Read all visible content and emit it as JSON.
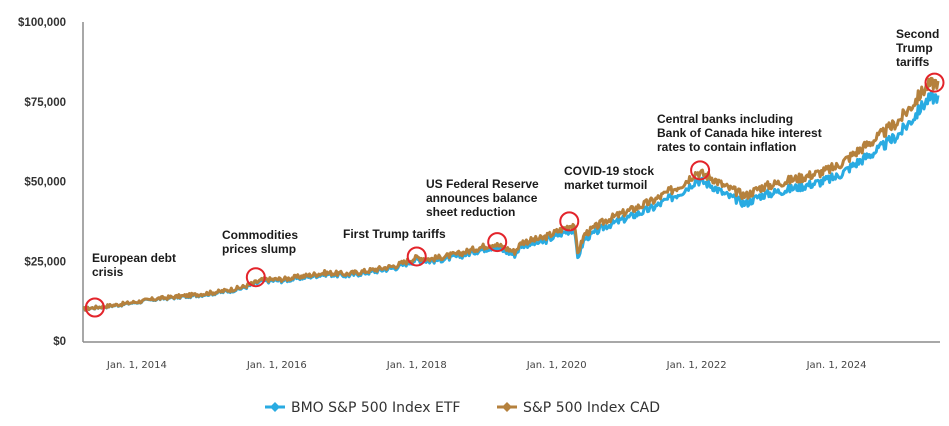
{
  "chart_data": {
    "type": "line",
    "title": "",
    "xlabel": "",
    "ylabel": "",
    "ylim": [
      0,
      100000
    ],
    "xlim": [
      2013.23,
      2025.45
    ],
    "grid": false,
    "legend_position": "bottom-center",
    "y_ticks": [
      {
        "value": 0,
        "label": "$0"
      },
      {
        "value": 25000,
        "label": "$25,000"
      },
      {
        "value": 50000,
        "label": "$50,000"
      },
      {
        "value": 75000,
        "label": "$75,000"
      },
      {
        "value": 100000,
        "label": "$100,000"
      }
    ],
    "x_ticks": [
      {
        "value": 2014,
        "label": "Jan. 1, 2014"
      },
      {
        "value": 2016,
        "label": "Jan. 1, 2016"
      },
      {
        "value": 2018,
        "label": "Jan. 1, 2018"
      },
      {
        "value": 2020,
        "label": "Jan. 1, 2020"
      },
      {
        "value": 2022,
        "label": "Jan. 1, 2022"
      },
      {
        "value": 2024,
        "label": "Jan. 1, 2024"
      }
    ],
    "series": [
      {
        "name": "BMO S&P 500 Index ETF",
        "color": "#29abe2",
        "points": [
          [
            2013.23,
            10000
          ],
          [
            2013.8,
            11500
          ],
          [
            2014.3,
            13200
          ],
          [
            2014.8,
            14200
          ],
          [
            2015.2,
            15300
          ],
          [
            2015.5,
            16500
          ],
          [
            2015.8,
            18800
          ],
          [
            2016.1,
            19000
          ],
          [
            2016.4,
            20000
          ],
          [
            2016.7,
            21000
          ],
          [
            2017.0,
            20500
          ],
          [
            2017.3,
            21500
          ],
          [
            2017.7,
            23000
          ],
          [
            2018.0,
            25500
          ],
          [
            2018.2,
            25000
          ],
          [
            2018.6,
            26500
          ],
          [
            2018.9,
            28500
          ],
          [
            2019.1,
            29500
          ],
          [
            2019.4,
            27000
          ],
          [
            2019.5,
            30000
          ],
          [
            2019.8,
            31000
          ],
          [
            2020.1,
            34000
          ],
          [
            2020.25,
            35000
          ],
          [
            2020.3,
            26000
          ],
          [
            2020.4,
            32000
          ],
          [
            2020.7,
            36000
          ],
          [
            2021.0,
            38500
          ],
          [
            2021.4,
            42000
          ],
          [
            2021.8,
            47000
          ],
          [
            2022.0,
            50500
          ],
          [
            2022.2,
            49000
          ],
          [
            2022.4,
            46000
          ],
          [
            2022.7,
            43000
          ],
          [
            2022.9,
            45500
          ],
          [
            2023.2,
            47000
          ],
          [
            2023.5,
            48500
          ],
          [
            2023.8,
            50000
          ],
          [
            2024.0,
            51500
          ],
          [
            2024.3,
            56000
          ],
          [
            2024.6,
            60000
          ],
          [
            2024.9,
            65000
          ],
          [
            2025.1,
            70000
          ],
          [
            2025.2,
            73000
          ],
          [
            2025.3,
            75500
          ],
          [
            2025.45,
            77000
          ]
        ]
      },
      {
        "name": "S&P 500 Index CAD",
        "color": "#b5813d",
        "points": [
          [
            2013.23,
            10000
          ],
          [
            2013.8,
            11600
          ],
          [
            2014.3,
            13300
          ],
          [
            2014.8,
            14400
          ],
          [
            2015.2,
            15500
          ],
          [
            2015.5,
            16800
          ],
          [
            2015.8,
            19200
          ],
          [
            2016.1,
            19400
          ],
          [
            2016.4,
            20400
          ],
          [
            2016.7,
            21400
          ],
          [
            2017.0,
            21000
          ],
          [
            2017.3,
            22000
          ],
          [
            2017.7,
            23600
          ],
          [
            2018.0,
            26200
          ],
          [
            2018.2,
            25700
          ],
          [
            2018.6,
            27300
          ],
          [
            2018.9,
            29300
          ],
          [
            2019.1,
            30500
          ],
          [
            2019.4,
            28000
          ],
          [
            2019.5,
            31000
          ],
          [
            2019.8,
            32200
          ],
          [
            2020.1,
            35300
          ],
          [
            2020.25,
            36800
          ],
          [
            2020.3,
            27500
          ],
          [
            2020.4,
            33500
          ],
          [
            2020.7,
            37800
          ],
          [
            2021.0,
            40500
          ],
          [
            2021.4,
            44200
          ],
          [
            2021.8,
            49300
          ],
          [
            2022.0,
            53000
          ],
          [
            2022.2,
            51500
          ],
          [
            2022.4,
            48500
          ],
          [
            2022.7,
            45500
          ],
          [
            2022.9,
            48000
          ],
          [
            2023.2,
            49700
          ],
          [
            2023.5,
            51300
          ],
          [
            2023.8,
            53000
          ],
          [
            2024.0,
            54700
          ],
          [
            2024.3,
            59500
          ],
          [
            2024.6,
            64000
          ],
          [
            2024.9,
            69300
          ],
          [
            2025.1,
            74500
          ],
          [
            2025.2,
            77500
          ],
          [
            2025.3,
            80000
          ],
          [
            2025.45,
            81500
          ]
        ]
      }
    ],
    "annotations": [
      {
        "lines": [
          "European debt",
          "crisis"
        ],
        "x": 2013.4,
        "y": 10500
      },
      {
        "lines": [
          "Commodities",
          "prices slump"
        ],
        "x": 2015.7,
        "y": 20000
      },
      {
        "lines": [
          "First Trump tariffs"
        ],
        "x": 2018.0,
        "y": 26500
      },
      {
        "lines": [
          "US Federal Reserve",
          "announces balance",
          "sheet reduction"
        ],
        "x": 2019.15,
        "y": 31000
      },
      {
        "lines": [
          "COVID-19 stock",
          "market turmoil"
        ],
        "x": 2020.18,
        "y": 37500
      },
      {
        "lines": [
          "Central banks including",
          "Bank of Canada hike interest",
          "rates to contain inflation"
        ],
        "x": 2022.05,
        "y": 53500
      },
      {
        "lines": [
          "Second",
          "Trump",
          "tariffs"
        ],
        "x": 2025.4,
        "y": 81000
      }
    ]
  }
}
